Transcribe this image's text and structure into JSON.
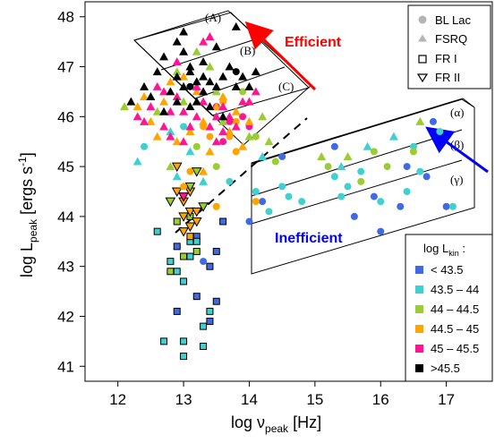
{
  "chart_data": {
    "type": "scatter",
    "xlabel_main": "log ν",
    "xlabel_sub": "peak",
    "xlabel_unit": " [Hz]",
    "ylabel_main": "log L",
    "ylabel_sub": "peak",
    "ylabel_unit": " [ergs s",
    "ylabel_exp": "-1",
    "ylabel_close": "]",
    "xlim": [
      11.5,
      17.7
    ],
    "ylim": [
      40.7,
      48.3
    ],
    "xticks": [
      12,
      13,
      14,
      15,
      16,
      17
    ],
    "yticks": [
      41,
      42,
      43,
      44,
      45,
      46,
      47,
      48
    ],
    "xtick_labels": [
      "12",
      "13",
      "14",
      "15",
      "16",
      "17"
    ],
    "ytick_labels": [
      "41",
      "42",
      "43",
      "44",
      "45",
      "46",
      "47",
      "48"
    ],
    "legend_types": {
      "items": [
        {
          "label": "BL Lac",
          "symbol": "circle"
        },
        {
          "label": "FSRQ",
          "symbol": "triangle"
        },
        {
          "label": "FR I",
          "symbol": "square-open"
        },
        {
          "label": "FR II",
          "symbol": "triangle-down-open"
        }
      ]
    },
    "legend_kin": {
      "title_main": "log L",
      "title_sub": "kin",
      "title_tail": " :",
      "items": [
        {
          "label": "< 43.5",
          "color": "#4169e1"
        },
        {
          "label": "43.5 – 44",
          "color": "#40d0d0"
        },
        {
          "label": "44 – 44.5",
          "color": "#9acd32"
        },
        {
          "label": "44.5 – 45",
          "color": "#ffa500"
        },
        {
          "label": "45 – 45.5",
          "color": "#ff1493"
        },
        {
          "label": ">45.5",
          "color": "#000000"
        }
      ]
    },
    "annotations": {
      "efficient": "Efficient",
      "inefficient": "Inefficient",
      "efficient_color": "#ff0000",
      "inefficient_color": "#0000ff",
      "regionA": "(A)",
      "regionB": "(B)",
      "regionC": "(C)",
      "regionAlpha": "(α)",
      "regionBeta": "(β)",
      "regionGamma": "(γ)"
    },
    "series": [
      {
        "bin": 0,
        "type": "bllac",
        "points": [
          [
            13.3,
            43.1
          ],
          [
            14.0,
            43.9
          ],
          [
            14.2,
            44.3
          ],
          [
            14.5,
            45.2
          ],
          [
            15.3,
            45.4
          ],
          [
            15.6,
            44.0
          ],
          [
            15.9,
            44.4
          ],
          [
            16.0,
            43.7
          ],
          [
            16.3,
            44.2
          ],
          [
            16.4,
            45.0
          ],
          [
            16.7,
            44.8
          ],
          [
            16.8,
            45.9
          ],
          [
            17.0,
            44.2
          ]
        ]
      },
      {
        "bin": 1,
        "type": "bllac",
        "points": [
          [
            12.4,
            45.4
          ],
          [
            13.0,
            45.8
          ],
          [
            13.7,
            44.7
          ],
          [
            14.1,
            44.5
          ],
          [
            14.3,
            44.1
          ],
          [
            14.5,
            44.6
          ],
          [
            14.8,
            44.3
          ],
          [
            15.3,
            44.8
          ],
          [
            15.5,
            44.6
          ],
          [
            15.7,
            44.9
          ],
          [
            16.0,
            44.3
          ],
          [
            16.4,
            44.5
          ],
          [
            16.5,
            45.4
          ],
          [
            16.6,
            44.9
          ],
          [
            16.9,
            45.7
          ],
          [
            17.1,
            44.2
          ],
          [
            15.4,
            44.4
          ],
          [
            14.6,
            44.4
          ]
        ]
      },
      {
        "bin": 2,
        "type": "bllac",
        "points": [
          [
            13.9,
            46.5
          ],
          [
            14.1,
            45.6
          ],
          [
            14.4,
            45.1
          ],
          [
            15.2,
            45.0
          ],
          [
            15.7,
            44.7
          ],
          [
            15.9,
            45.3
          ],
          [
            16.1,
            45.0
          ],
          [
            16.5,
            45.3
          ],
          [
            13.2,
            45.4
          ],
          [
            13.5,
            45.0
          ]
        ]
      },
      {
        "bin": 3,
        "type": "bllac",
        "points": [
          [
            13.1,
            44.9
          ],
          [
            13.3,
            45.8
          ],
          [
            13.5,
            44.2
          ],
          [
            13.6,
            46.3
          ],
          [
            13.8,
            45.3
          ],
          [
            14.1,
            44.3
          ],
          [
            13.0,
            44.6
          ],
          [
            13.4,
            45.6
          ],
          [
            13.7,
            45.6
          ],
          [
            13.8,
            45.9
          ]
        ]
      },
      {
        "bin": 4,
        "type": "bllac",
        "points": [
          [
            13.5,
            46.2
          ],
          [
            13.7,
            45.9
          ],
          [
            13.9,
            46.0
          ],
          [
            14.0,
            45.8
          ],
          [
            13.6,
            45.5
          ]
        ]
      },
      {
        "bin": 5,
        "type": "bllac",
        "points": [
          [
            13.8,
            46.9
          ],
          [
            13.1,
            46.6
          ]
        ]
      },
      {
        "bin": 1,
        "type": "fsrq",
        "points": [
          [
            12.3,
            45.1
          ],
          [
            12.8,
            45.7
          ],
          [
            13.1,
            45.3
          ],
          [
            14.2,
            45.2
          ],
          [
            15.4,
            45.0
          ],
          [
            15.8,
            45.4
          ],
          [
            16.2,
            45.6
          ],
          [
            12.9,
            44.8
          ],
          [
            13.3,
            44.7
          ]
        ]
      },
      {
        "bin": 2,
        "type": "fsrq",
        "points": [
          [
            12.1,
            46.2
          ],
          [
            13.0,
            46.3
          ],
          [
            13.4,
            47.0
          ],
          [
            13.6,
            45.9
          ],
          [
            13.2,
            47.3
          ],
          [
            14.0,
            45.6
          ],
          [
            14.3,
            45.5
          ],
          [
            12.6,
            46.1
          ],
          [
            12.8,
            45.0
          ],
          [
            14.2,
            46.0
          ],
          [
            15.1,
            45.2
          ],
          [
            15.5,
            45.2
          ],
          [
            16.6,
            45.9
          ],
          [
            13.5,
            46.5
          ],
          [
            12.9,
            46.9
          ]
        ]
      },
      {
        "bin": 3,
        "type": "fsrq",
        "points": [
          [
            12.4,
            46.4
          ],
          [
            12.5,
            45.9
          ],
          [
            12.7,
            46.3
          ],
          [
            12.9,
            45.5
          ],
          [
            13.0,
            46.8
          ],
          [
            13.2,
            46.5
          ],
          [
            13.3,
            45.9
          ],
          [
            13.4,
            45.3
          ],
          [
            13.5,
            46.2
          ],
          [
            13.7,
            45.7
          ],
          [
            13.8,
            46.1
          ],
          [
            14.0,
            45.9
          ],
          [
            12.6,
            45.6
          ],
          [
            12.8,
            46.7
          ],
          [
            13.1,
            45.7
          ],
          [
            13.3,
            44.9
          ],
          [
            13.6,
            46.4
          ],
          [
            12.3,
            46.2
          ],
          [
            13.9,
            45.4
          ]
        ]
      },
      {
        "bin": 4,
        "type": "fsrq",
        "points": [
          [
            12.3,
            46.0
          ],
          [
            12.5,
            46.2
          ],
          [
            12.6,
            46.6
          ],
          [
            12.7,
            45.8
          ],
          [
            12.8,
            46.1
          ],
          [
            12.9,
            46.4
          ],
          [
            13.0,
            46.1
          ],
          [
            13.1,
            45.8
          ],
          [
            13.2,
            46.0
          ],
          [
            13.3,
            46.3
          ],
          [
            13.4,
            45.8
          ],
          [
            13.5,
            46.0
          ],
          [
            13.6,
            46.2
          ],
          [
            13.7,
            46.0
          ],
          [
            13.8,
            45.8
          ],
          [
            13.9,
            46.3
          ],
          [
            14.0,
            46.3
          ],
          [
            12.9,
            47.1
          ],
          [
            13.4,
            47.6
          ],
          [
            12.8,
            45.6
          ],
          [
            13.2,
            46.6
          ],
          [
            13.6,
            45.7
          ],
          [
            12.4,
            45.9
          ],
          [
            13.0,
            45.5
          ],
          [
            13.5,
            45.5
          ],
          [
            14.1,
            46.5
          ],
          [
            13.3,
            47.5
          ],
          [
            12.7,
            46.5
          ]
        ]
      },
      {
        "bin": 5,
        "type": "fsrq",
        "points": [
          [
            12.2,
            46.3
          ],
          [
            12.4,
            46.6
          ],
          [
            12.5,
            46.4
          ],
          [
            12.6,
            46.9
          ],
          [
            12.7,
            47.2
          ],
          [
            12.8,
            46.5
          ],
          [
            12.9,
            46.8
          ],
          [
            13.0,
            46.6
          ],
          [
            13.0,
            47.3
          ],
          [
            13.1,
            46.9
          ],
          [
            13.1,
            46.2
          ],
          [
            13.2,
            46.7
          ],
          [
            13.2,
            46.3
          ],
          [
            13.3,
            47.1
          ],
          [
            13.3,
            46.5
          ],
          [
            13.4,
            46.7
          ],
          [
            13.4,
            46.2
          ],
          [
            13.5,
            46.6
          ],
          [
            13.5,
            47.4
          ],
          [
            13.6,
            46.8
          ],
          [
            13.6,
            46.0
          ],
          [
            13.7,
            47.0
          ],
          [
            13.8,
            46.6
          ],
          [
            13.9,
            46.8
          ],
          [
            14.0,
            46.6
          ],
          [
            14.1,
            46.9
          ],
          [
            13.0,
            47.7
          ],
          [
            12.9,
            47.5
          ],
          [
            13.8,
            47.8
          ],
          [
            13.1,
            47.0
          ],
          [
            12.9,
            46.3
          ],
          [
            12.7,
            46.1
          ],
          [
            13.3,
            46.8
          ]
        ]
      },
      {
        "bin": 0,
        "type": "fr1",
        "points": [
          [
            13.6,
            43.9
          ],
          [
            13.2,
            42.4
          ],
          [
            13.5,
            42.3
          ],
          [
            13.4,
            41.9
          ],
          [
            13.2,
            43.6
          ],
          [
            13.4,
            43.0
          ],
          [
            13.5,
            43.3
          ],
          [
            12.9,
            42.1
          ],
          [
            12.9,
            43.4
          ]
        ]
      },
      {
        "bin": 1,
        "type": "fr1",
        "points": [
          [
            12.6,
            43.7
          ],
          [
            12.9,
            42.9
          ],
          [
            13.0,
            42.7
          ],
          [
            13.1,
            43.2
          ],
          [
            13.0,
            41.5
          ],
          [
            12.7,
            41.5
          ],
          [
            13.0,
            41.2
          ],
          [
            13.3,
            41.4
          ],
          [
            13.4,
            42.1
          ],
          [
            12.8,
            43.1
          ],
          [
            13.1,
            43.5
          ],
          [
            13.3,
            41.8
          ],
          [
            13.2,
            43.5
          ]
        ]
      },
      {
        "bin": 2,
        "type": "fr1",
        "points": [
          [
            12.8,
            42.9
          ],
          [
            13.0,
            43.2
          ],
          [
            13.1,
            44.0
          ],
          [
            13.2,
            43.3
          ],
          [
            12.9,
            43.9
          ]
        ]
      },
      {
        "bin": 3,
        "type": "fr1",
        "points": [
          [
            13.1,
            43.6
          ]
        ]
      },
      {
        "bin": 3,
        "type": "fr2",
        "points": [
          [
            12.9,
            44.5
          ],
          [
            13.0,
            44.3
          ],
          [
            13.1,
            44.1
          ],
          [
            13.2,
            43.9
          ],
          [
            13.0,
            44.0
          ],
          [
            13.1,
            44.5
          ],
          [
            12.9,
            45.0
          ],
          [
            13.1,
            43.8
          ],
          [
            13.0,
            43.7
          ],
          [
            13.2,
            44.1
          ]
        ]
      },
      {
        "bin": 2,
        "type": "fr2",
        "points": [
          [
            13.3,
            44.2
          ],
          [
            13.1,
            44.6
          ],
          [
            12.8,
            44.3
          ],
          [
            13.2,
            44.9
          ]
        ]
      },
      {
        "bin": 4,
        "type": "fr2",
        "points": [
          [
            13.0,
            44.4
          ]
        ]
      }
    ]
  }
}
